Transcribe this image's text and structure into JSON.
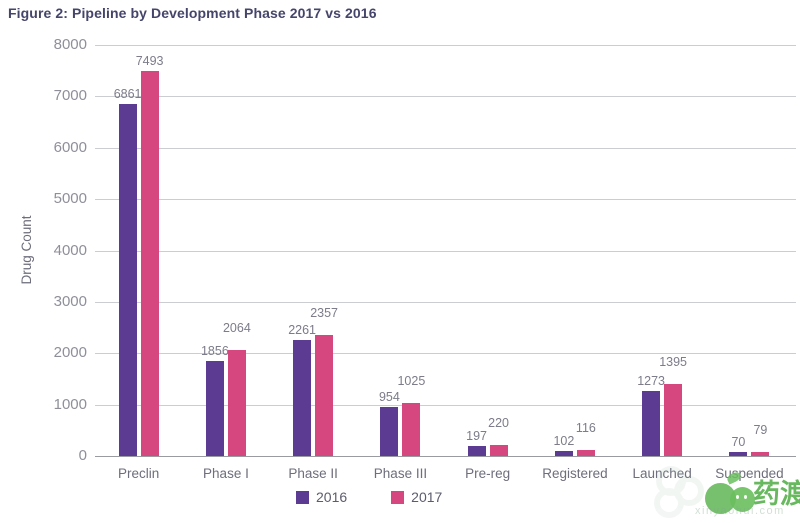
{
  "title": "Figure 2: Pipeline by Development Phase 2017 vs 2016",
  "chart_data": {
    "type": "bar",
    "title": "Figure 2: Pipeline by Development Phase 2017 vs 2016",
    "xlabel": "",
    "ylabel": "Drug Count",
    "categories": [
      "Preclin",
      "Phase I",
      "Phase II",
      "Phase III",
      "Pre-reg",
      "Registered",
      "Launched",
      "Suspended"
    ],
    "series": [
      {
        "name": "2016",
        "color": "#5c3c92",
        "values": [
          6861,
          1856,
          2261,
          954,
          197,
          102,
          1273,
          70
        ]
      },
      {
        "name": "2017",
        "color": "#d6477f",
        "values": [
          7493,
          2064,
          2357,
          1025,
          220,
          116,
          1395,
          79
        ]
      }
    ],
    "ylim": [
      0,
      8000
    ],
    "ytick_step": 1000,
    "grid": true,
    "legend_position": "bottom",
    "value_labels": true
  },
  "colors": {
    "grid": "#ccccd3",
    "axis": "#9a9aa2",
    "tick_text": "#8f8f9a",
    "title_text": "#45456b",
    "watermark_green": "#58b14e"
  },
  "watermark": {
    "brand": "药渡",
    "url": "xinyaohui.com"
  }
}
